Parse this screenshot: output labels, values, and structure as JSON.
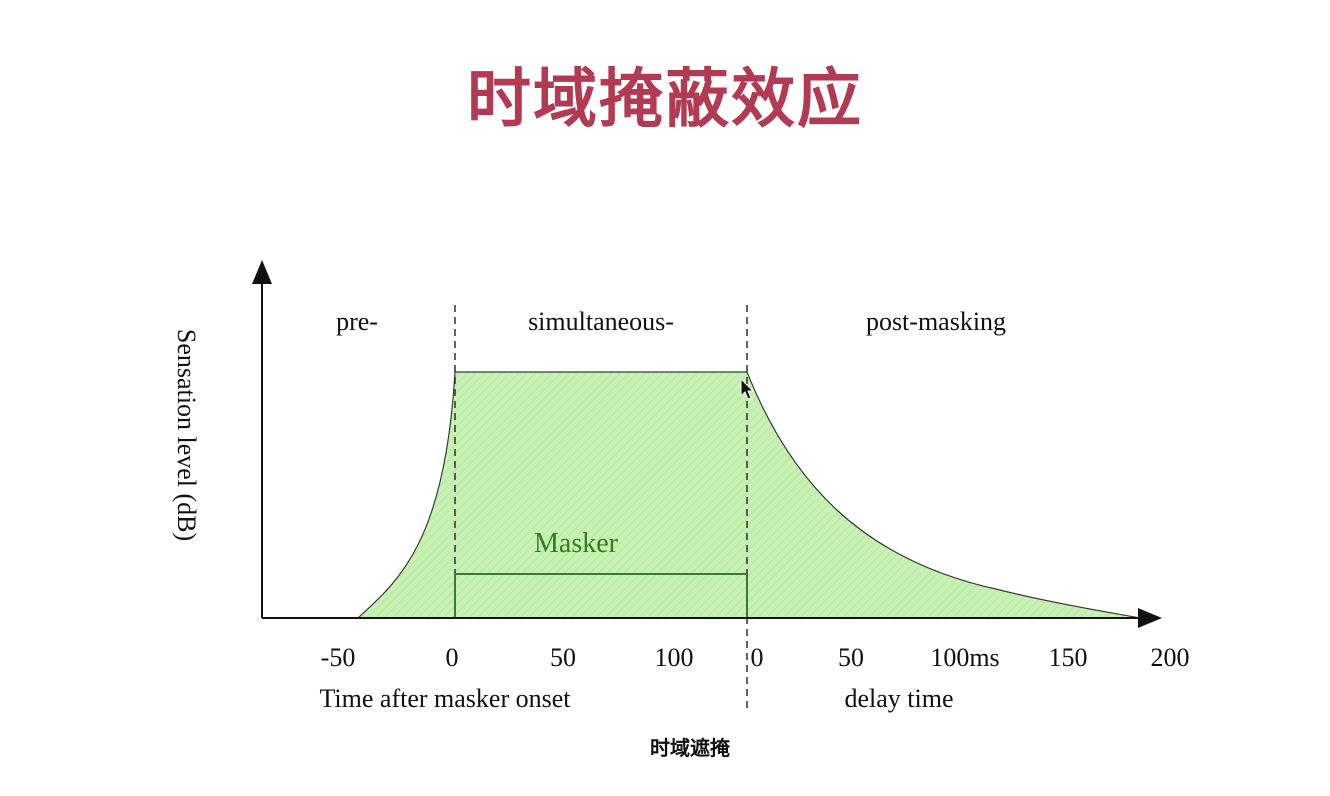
{
  "title": "时域掩蔽效应",
  "caption": "时域遮掩",
  "diagram": {
    "y_axis_label": "Sensation level (dB)",
    "regions": {
      "pre": "pre-",
      "simultaneous": "simultaneous-",
      "post": "post-masking"
    },
    "masker_label": "Masker",
    "ticks_left": [
      "-50",
      "0",
      "50",
      "100"
    ],
    "ticks_right": [
      "0",
      "50",
      "100ms",
      "150",
      "200"
    ],
    "x_label_left": "Time after masker onset",
    "x_label_right": "delay time",
    "colors": {
      "title": "#b23a52",
      "fill": "#c8f2b4",
      "masker_text": "#2f7d22",
      "masker_box": "#3b7a2f",
      "curve": "#2a2a2a"
    }
  }
}
